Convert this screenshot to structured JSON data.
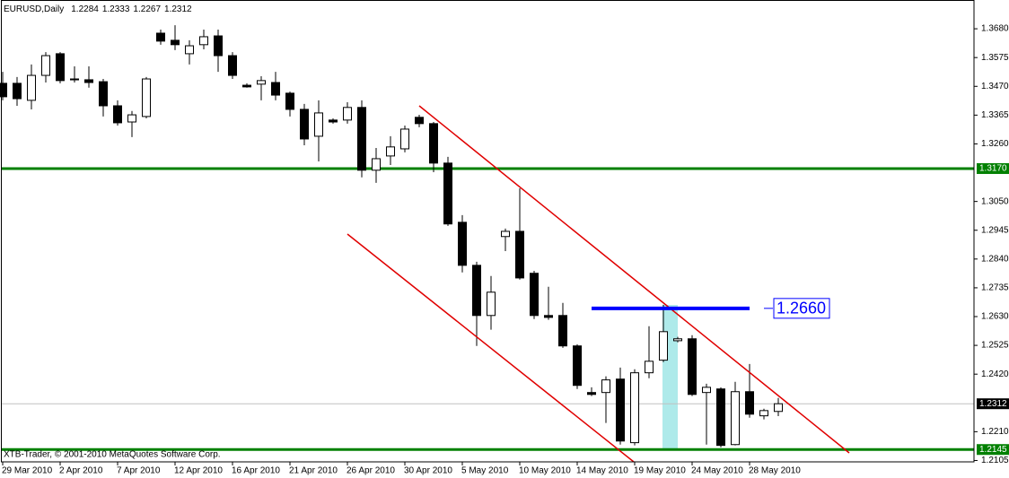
{
  "chart_data": {
    "type": "candlestick",
    "title": "EURUSD,Daily",
    "footer": "XTB-Trader, © 2001-2010 MetaQuotes Software Corp.",
    "categories": [
      "29 Mar 2010",
      null,
      null,
      null,
      "2 Apr 2010",
      null,
      null,
      null,
      "7 Apr 2010",
      null,
      null,
      null,
      "12 Apr 2010",
      null,
      null,
      null,
      "16 Apr 2010",
      null,
      null,
      null,
      "21 Apr 2010",
      null,
      null,
      null,
      "26 Apr 2010",
      null,
      null,
      null,
      "30 Apr 2010",
      null,
      null,
      null,
      "5 May 2010",
      null,
      null,
      null,
      "10 May 2010",
      null,
      null,
      null,
      "14 May 2010",
      null,
      null,
      null,
      "19 May 2010",
      null,
      null,
      null,
      "24 May 2010",
      null,
      null,
      null,
      "28 May 2010",
      null,
      null
    ],
    "open": [
      1.3481,
      1.3481,
      1.3419,
      1.351,
      1.3589,
      1.3497,
      1.3494,
      1.3487,
      1.3399,
      1.334,
      1.336,
      1.3664,
      1.3638,
      1.3589,
      1.3622,
      1.3654,
      1.3582,
      1.3474,
      1.3478,
      1.3484,
      1.3445,
      1.3386,
      1.3288,
      1.3347,
      1.3347,
      1.3393,
      1.3164,
      1.3216,
      1.3242,
      1.3357,
      1.3334,
      1.319,
      1.2974,
      1.2817,
      1.2634,
      1.2922,
      1.2941,
      1.2788,
      1.2634,
      1.2634,
      1.2523,
      1.2353,
      1.2353,
      1.2402,
      1.217,
      1.2425,
      1.2471,
      1.2542,
      1.2549,
      1.2353,
      1.2366,
      1.2163,
      1.2356,
      1.2268,
      1.2284
    ],
    "high": [
      1.3523,
      1.3504,
      1.355,
      1.3595,
      1.3595,
      1.3543,
      1.3543,
      1.3497,
      1.3419,
      1.338,
      1.3504,
      1.3677,
      1.3693,
      1.3638,
      1.3677,
      1.3677,
      1.3595,
      1.3481,
      1.3507,
      1.3523,
      1.3451,
      1.3406,
      1.3419,
      1.3353,
      1.3412,
      1.3419,
      1.3245,
      1.3288,
      1.3327,
      1.3366,
      1.334,
      1.3213,
      1.3,
      1.283,
      1.2778,
      1.2951,
      1.3098,
      1.2797,
      1.2739,
      1.268,
      1.2529,
      1.2372,
      1.2412,
      1.2444,
      1.2438,
      1.2595,
      1.2673,
      1.2556,
      1.2562,
      1.2385,
      1.2372,
      1.2392,
      1.2457,
      1.2294,
      1.2333
    ],
    "low": [
      1.3419,
      1.3399,
      1.3386,
      1.3484,
      1.3481,
      1.3484,
      1.3465,
      1.336,
      1.3327,
      1.3285,
      1.3353,
      1.3622,
      1.3602,
      1.355,
      1.3605,
      1.3523,
      1.3497,
      1.3465,
      1.3419,
      1.3419,
      1.336,
      1.3255,
      1.3196,
      1.3334,
      1.3334,
      1.3138,
      1.3118,
      1.3183,
      1.3229,
      1.3321,
      1.3157,
      1.2961,
      1.2791,
      1.2523,
      1.2582,
      1.2869,
      1.2765,
      1.2621,
      1.2618,
      1.2516,
      1.2366,
      1.234,
      1.2242,
      1.2163,
      1.216,
      1.2405,
      1.2464,
      1.2536,
      1.234,
      1.2163,
      1.2153,
      1.216,
      1.2261,
      1.2255,
      1.2267
    ],
    "close": [
      1.3432,
      1.3425,
      1.351,
      1.3582,
      1.3491,
      1.3494,
      1.3484,
      1.3399,
      1.3337,
      1.3366,
      1.3497,
      1.3635,
      1.3622,
      1.3618,
      1.3651,
      1.3582,
      1.351,
      1.3468,
      1.3491,
      1.3438,
      1.3386,
      1.3278,
      1.3373,
      1.334,
      1.3393,
      1.3164,
      1.3206,
      1.3249,
      1.3314,
      1.3334,
      1.319,
      1.2968,
      1.2817,
      1.2634,
      1.2719,
      1.2941,
      1.2771,
      1.2634,
      1.2627,
      1.2523,
      1.2379,
      1.2346,
      1.2399,
      1.2176,
      1.2425,
      1.2467,
      1.2575,
      1.2549,
      1.2346,
      1.2372,
      1.216,
      1.2356,
      1.2274,
      1.2287,
      1.2312
    ],
    "ylim": [
      1.21,
      1.3785
    ],
    "yticks": [
      {
        "value": 1.368,
        "label": "1.3680"
      },
      1.3575,
      {
        "value": 1.347,
        "label": "1.3470"
      },
      1.3365,
      {
        "value": 1.326,
        "label": "1.3260"
      },
      {
        "value": 1.305,
        "label": "1.3050"
      },
      1.2945,
      {
        "value": 1.284,
        "label": "1.2840"
      },
      1.2735,
      {
        "value": 1.263,
        "label": "1.2630"
      },
      1.2525,
      {
        "value": 1.242,
        "label": "1.2420"
      },
      {
        "value": 1.221,
        "label": "1.2210"
      },
      1.2105
    ],
    "hlines": [
      {
        "value": 1.317,
        "label": "1.3170",
        "color": "#008000"
      },
      {
        "value": 1.2145,
        "color": "#008000"
      },
      {
        "value": 1.2312,
        "color": "#000000"
      }
    ],
    "level": {
      "value": 1.266,
      "label": "1.2660",
      "color": "#0000ff"
    },
    "up_color": "#ffffff",
    "down_color": "#000000"
  }
}
